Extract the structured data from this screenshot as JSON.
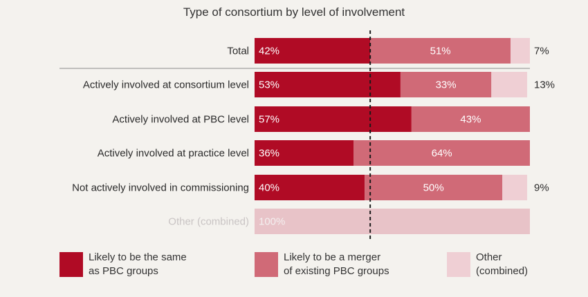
{
  "colors": {
    "same": "#b00b25",
    "merger": "#d06a77",
    "other": "#efcfd4",
    "other_row": "#e8c3c8",
    "muted_text": "#c9c4c4"
  },
  "chart_data": {
    "type": "bar",
    "orientation": "horizontal",
    "stacked": true,
    "title": "Type of consortium by level of involvement",
    "categories": [
      "Total",
      "Actively involved at consortium level",
      "Actively involved at PBC level",
      "Actively involved at practice level",
      "Not actively involved in commissioning",
      "Other (combined)"
    ],
    "series": [
      {
        "name": "Likely to be the same as PBC groups",
        "values": [
          42,
          53,
          57,
          36,
          40,
          0
        ],
        "labels": [
          "42%",
          "53%",
          "57%",
          "36%",
          "40%",
          ""
        ]
      },
      {
        "name": "Likely to be a merger of existing PBC groups",
        "values": [
          51,
          33,
          43,
          64,
          50,
          0
        ],
        "labels": [
          "51%",
          "33%",
          "43%",
          "64%",
          "50%",
          ""
        ]
      },
      {
        "name": "Other (combined)",
        "values": [
          7,
          13,
          0,
          0,
          9,
          100
        ],
        "labels": [
          "7%",
          "13%",
          "",
          "",
          "9%",
          "100%"
        ]
      }
    ],
    "xlim": [
      0,
      100
    ],
    "reference_line": 42,
    "legend_position": "bottom"
  },
  "legend": [
    {
      "key": "same",
      "line1": "Likely to be the same",
      "line2": "as PBC groups"
    },
    {
      "key": "merger",
      "line1": "Likely to be a merger",
      "line2": "of existing PBC groups"
    },
    {
      "key": "other",
      "line1": "Other",
      "line2": "(combined)"
    }
  ]
}
